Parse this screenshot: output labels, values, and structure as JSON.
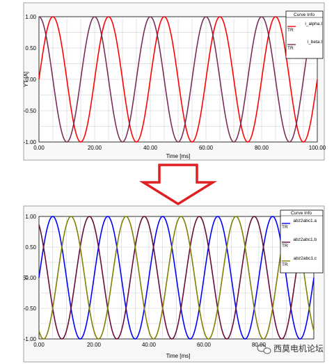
{
  "chart_data": [
    {
      "type": "line",
      "xlabel": "Time [ms]",
      "ylabel": "YT [A]",
      "xlim": [
        0,
        100
      ],
      "ylim": [
        -1,
        1
      ],
      "x_ticks": [
        "0.00",
        "20.00",
        "40.00",
        "60.00",
        "80.00",
        "100.00"
      ],
      "y_ticks": [
        "1.00",
        "0.50",
        "0.00",
        "-0.50",
        "-1.00"
      ],
      "grid": true,
      "legend_title": "Curve Info",
      "legend_placement": "top-right",
      "series": [
        {
          "name": "i_alpha.I",
          "legend_sub": "TR",
          "color": "#ff0000",
          "function": "sin",
          "frequency_hz": 50,
          "phase_deg": 0,
          "amplitude": 1
        },
        {
          "name": "i_beta.I",
          "legend_sub": "TR",
          "color": "#7a2d5a",
          "function": "sin",
          "frequency_hz": 50,
          "phase_deg": 90,
          "amplitude": 1
        }
      ]
    },
    {
      "type": "line",
      "xlabel": "Time [ms]",
      "ylabel": "YI",
      "xlim": [
        0,
        100
      ],
      "ylim": [
        -1,
        1
      ],
      "x_ticks": [
        "0.00",
        "20.00",
        "40.00",
        "60.00",
        "80.00"
      ],
      "y_ticks": [
        "1.00",
        "0.50",
        "0.00",
        "-0.50",
        "-1.00"
      ],
      "grid": true,
      "legend_title": "Curve Info",
      "legend_placement": "top-right",
      "series": [
        {
          "name": "abz2abc1.a",
          "legend_sub": "TR",
          "color": "#0000ff",
          "function": "sin",
          "frequency_hz": 50,
          "phase_deg": 0,
          "amplitude": 1
        },
        {
          "name": "abz2abc1.b",
          "legend_sub": "TR",
          "color": "#6a0a3a",
          "function": "sin",
          "frequency_hz": 50,
          "phase_deg": 120,
          "amplitude": 1
        },
        {
          "name": "abz2abc1.c",
          "legend_sub": "TR",
          "color": "#808000",
          "function": "sin",
          "frequency_hz": 50,
          "phase_deg": -120,
          "amplitude": 1
        }
      ]
    }
  ],
  "arrow": {
    "color": "#e02020",
    "icon": "down-arrow-icon"
  },
  "watermark": {
    "text": "西莫电机论坛",
    "icon": "wechat-icon"
  }
}
